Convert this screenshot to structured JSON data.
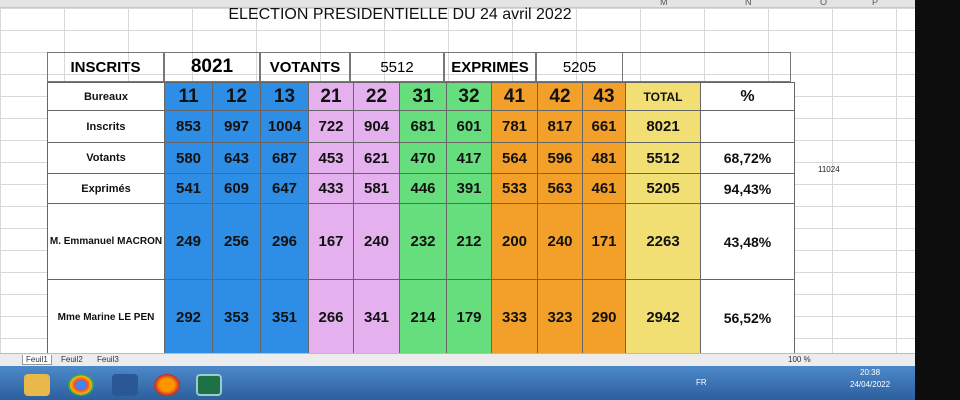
{
  "window": {
    "title": "ELECTION PRESIDENTIELLE DU 24 avril 2022"
  },
  "column_letters": [
    "M",
    "N",
    "O",
    "P"
  ],
  "summary": {
    "inscrits_label": "INSCRITS",
    "inscrits_value": "8021",
    "votants_label": "VOTANTS",
    "votants_value": "5512",
    "exprimes_label": "EXPRIMES",
    "exprimes_value": "5205"
  },
  "table": {
    "bureaux_label": "Bureaux",
    "bureaux": [
      "11",
      "12",
      "13",
      "21",
      "22",
      "31",
      "32",
      "41",
      "42",
      "43"
    ],
    "total_label": "TOTAL",
    "pct_label": "%",
    "rows": [
      {
        "label": "Inscrits",
        "values": [
          "853",
          "997",
          "1004",
          "722",
          "904",
          "681",
          "601",
          "781",
          "817",
          "661"
        ],
        "total": "8021",
        "pct": ""
      },
      {
        "label": "Votants",
        "values": [
          "580",
          "643",
          "687",
          "453",
          "621",
          "470",
          "417",
          "564",
          "596",
          "481"
        ],
        "total": "5512",
        "pct": "68,72%"
      },
      {
        "label": "Exprimés",
        "values": [
          "541",
          "609",
          "647",
          "433",
          "581",
          "446",
          "391",
          "533",
          "563",
          "461"
        ],
        "total": "5205",
        "pct": "94,43%"
      },
      {
        "label": "M. Emmanuel MACRON",
        "values": [
          "249",
          "256",
          "296",
          "167",
          "240",
          "232",
          "212",
          "200",
          "240",
          "171"
        ],
        "total": "2263",
        "pct": "43,48%"
      },
      {
        "label": "Mme Marine LE PEN",
        "values": [
          "292",
          "353",
          "351",
          "266",
          "341",
          "214",
          "179",
          "333",
          "323",
          "290"
        ],
        "total": "2942",
        "pct": "56,52%"
      }
    ]
  },
  "side_value": "11024",
  "sheet_tabs": [
    "Feuil1",
    "Feuil2",
    "Feuil3"
  ],
  "status": {
    "zoom": "100 %",
    "lang": "FR",
    "time": "20:38",
    "date": "24/04/2022"
  },
  "colors": {
    "blue": "#2e8ee6",
    "pink": "#e4b0ee",
    "green": "#66de7e",
    "orange": "#f3a02a",
    "yellow": "#f1df74"
  },
  "taskbar_icons": [
    "file-explorer-icon",
    "chrome-icon",
    "word-icon",
    "firefox-icon",
    "excel-icon"
  ]
}
